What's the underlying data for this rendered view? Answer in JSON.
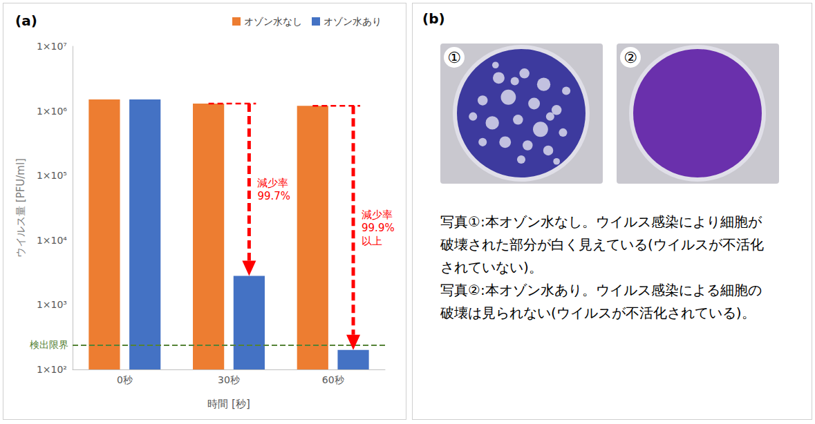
{
  "chart_data": {
    "type": "bar",
    "panel_label": "(a)",
    "categories": [
      "0秒",
      "30秒",
      "60秒"
    ],
    "series": [
      {
        "name": "オゾン水なし",
        "color": "#ed7d31",
        "values": [
          1500000,
          1300000,
          1200000
        ]
      },
      {
        "name": "オゾン水あり",
        "color": "#4472c4",
        "values": [
          1500000,
          2800,
          200
        ]
      }
    ],
    "x_label": "時間 [秒]",
    "y_label": "ウイルス量 [PFU/ml]",
    "log": "y",
    "ylim": [
      100,
      10000000
    ],
    "yticks": [
      {
        "value": 100,
        "label": "1×10²"
      },
      {
        "value": 1000,
        "label": "1×10³"
      },
      {
        "value": 10000,
        "label": "1×10⁴"
      },
      {
        "value": 100000,
        "label": "1×10⁵"
      },
      {
        "value": 1000000,
        "label": "1×10⁶"
      },
      {
        "value": 10000000,
        "label": "1×10⁷"
      }
    ],
    "grid": false,
    "legend": "top right",
    "reference_line": {
      "value": 240,
      "label": "検出限界",
      "color": "#548235"
    },
    "reductions": [
      {
        "category": "30秒",
        "text": [
          "減少率",
          "99.7%"
        ],
        "color": "#ff0000"
      },
      {
        "category": "60秒",
        "text": [
          "減少率",
          "99.9%",
          "以上"
        ],
        "color": "#ff0000"
      }
    ]
  },
  "panel_b": {
    "label": "(b)",
    "photos": [
      {
        "label": "①"
      },
      {
        "label": "②"
      }
    ],
    "captions": [
      "写真①:本オゾン水なし。ウイルス感染により細胞が破壊された部分が白く見えている(ウイルスが不活化されていない)。",
      "写真②:本オゾン水あり。ウイルス感染による細胞の破壊は見られない(ウイルスが不活化されている)。"
    ]
  }
}
